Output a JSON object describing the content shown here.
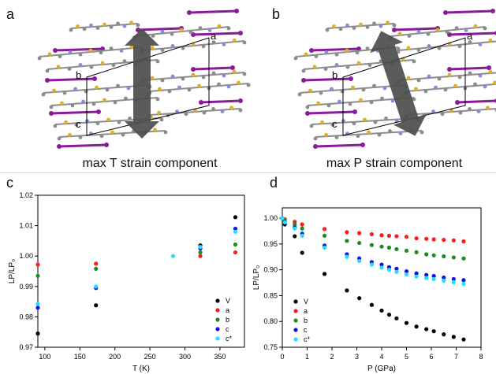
{
  "panels": {
    "a": {
      "letter": "a",
      "caption": "max T strain component",
      "labels": {
        "a": "a",
        "b": "b",
        "c": "c"
      }
    },
    "b": {
      "letter": "b",
      "caption": "max P strain component",
      "labels": {
        "a": "a",
        "b": "b",
        "c": "c"
      }
    },
    "c": {
      "letter": "c"
    },
    "d": {
      "letter": "d"
    }
  },
  "colors": {
    "V": "#000000",
    "a": "#ff1a1a",
    "b": "#1e8c1e",
    "c": "#1010ee",
    "c*": "#22e0ff",
    "arrow": "#4d4d4d",
    "purple": "#8a1a9a",
    "carbon": "#8c8c8c",
    "sulfur": "#e0b020",
    "nitrogen": "#8a8ad8"
  },
  "chart_data": [
    {
      "type": "scatter",
      "ylabel": "LP/LP₀",
      "xlabel": "T (K)",
      "xlim": [
        90,
        385
      ],
      "ylim": [
        0.97,
        1.02
      ],
      "xticks": [
        "100",
        "150",
        "200",
        "250",
        "300",
        "350"
      ],
      "yticks": [
        "0.97",
        "0.98",
        "0.99",
        "1.00",
        "1.01",
        "1.02"
      ],
      "legend_position": "bottom-right",
      "series": [
        {
          "name": "V",
          "x": [
            90,
            173,
            322,
            372
          ],
          "y": [
            0.9745,
            0.9838,
            1.0035,
            1.0128
          ]
        },
        {
          "name": "a",
          "x": [
            90,
            173,
            322,
            372
          ],
          "y": [
            0.9972,
            0.9975,
            1.0,
            1.0012
          ]
        },
        {
          "name": "b",
          "x": [
            90,
            173,
            322,
            372
          ],
          "y": [
            0.9935,
            0.9958,
            1.0012,
            1.0038
          ]
        },
        {
          "name": "c",
          "x": [
            90,
            173,
            322,
            372
          ],
          "y": [
            0.983,
            0.9895,
            1.0025,
            1.009
          ]
        },
        {
          "name": "c*",
          "x": [
            90,
            173,
            283,
            322,
            372
          ],
          "y": [
            0.9842,
            0.99,
            1.0,
            1.003,
            1.008
          ]
        }
      ]
    },
    {
      "type": "scatter",
      "ylabel": "LP/LP₀",
      "xlabel": "P (GPa)",
      "xlim": [
        0,
        8
      ],
      "ylim": [
        0.75,
        1.02
      ],
      "xticks": [
        "0",
        "1",
        "2",
        "3",
        "4",
        "5",
        "6",
        "7",
        "8"
      ],
      "yticks": [
        "0.75",
        "0.80",
        "0.85",
        "0.90",
        "0.95",
        "1.00"
      ],
      "legend_position": "bottom-left",
      "series": [
        {
          "name": "V",
          "x": [
            0,
            0.1,
            0.5,
            0.8,
            1.7,
            2.6,
            3.1,
            3.6,
            4.0,
            4.3,
            4.6,
            5.0,
            5.4,
            5.8,
            6.1,
            6.5,
            6.9,
            7.3
          ],
          "y": [
            1.0,
            0.988,
            0.965,
            0.933,
            0.892,
            0.86,
            0.845,
            0.832,
            0.821,
            0.813,
            0.806,
            0.797,
            0.79,
            0.785,
            0.781,
            0.775,
            0.77,
            0.765
          ]
        },
        {
          "name": "a",
          "x": [
            0,
            0.1,
            0.5,
            0.8,
            1.7,
            2.6,
            3.1,
            3.6,
            4.0,
            4.3,
            4.6,
            5.0,
            5.4,
            5.8,
            6.1,
            6.5,
            6.9,
            7.3
          ],
          "y": [
            1.0,
            0.998,
            0.993,
            0.988,
            0.979,
            0.973,
            0.971,
            0.969,
            0.967,
            0.966,
            0.965,
            0.964,
            0.961,
            0.96,
            0.959,
            0.958,
            0.957,
            0.955
          ]
        },
        {
          "name": "b",
          "x": [
            0,
            0.1,
            0.5,
            0.8,
            1.7,
            2.6,
            3.1,
            3.6,
            4.0,
            4.3,
            4.6,
            5.0,
            5.4,
            5.8,
            6.1,
            6.5,
            6.9,
            7.3
          ],
          "y": [
            1.0,
            0.996,
            0.988,
            0.98,
            0.966,
            0.956,
            0.952,
            0.948,
            0.945,
            0.943,
            0.94,
            0.937,
            0.934,
            0.93,
            0.928,
            0.926,
            0.924,
            0.922
          ]
        },
        {
          "name": "c",
          "x": [
            0,
            0.1,
            0.5,
            0.8,
            1.7,
            2.6,
            3.1,
            3.6,
            4.0,
            4.3,
            4.6,
            5.0,
            5.4,
            5.8,
            6.1,
            6.5,
            6.9,
            7.3
          ],
          "y": [
            1.0,
            0.993,
            0.982,
            0.97,
            0.947,
            0.93,
            0.922,
            0.915,
            0.91,
            0.905,
            0.902,
            0.897,
            0.893,
            0.89,
            0.888,
            0.885,
            0.882,
            0.88
          ]
        },
        {
          "name": "c*",
          "x": [
            0,
            0.1,
            0.5,
            0.8,
            1.7,
            2.6,
            3.1,
            3.6,
            4.0,
            4.3,
            4.6,
            5.0,
            5.4,
            5.8,
            6.1,
            6.5,
            6.9,
            7.3
          ],
          "y": [
            1.0,
            0.992,
            0.98,
            0.966,
            0.943,
            0.925,
            0.917,
            0.91,
            0.904,
            0.9,
            0.896,
            0.891,
            0.887,
            0.884,
            0.882,
            0.879,
            0.876,
            0.873
          ]
        }
      ]
    }
  ]
}
